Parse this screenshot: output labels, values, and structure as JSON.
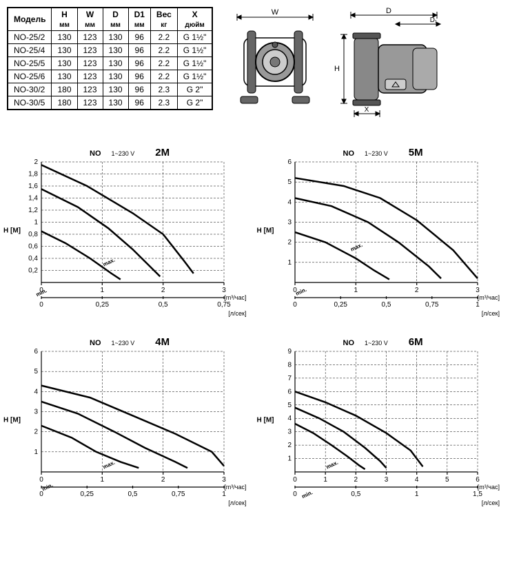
{
  "table": {
    "columns": [
      {
        "top": "Модель",
        "sub": ""
      },
      {
        "top": "H",
        "sub": "мм"
      },
      {
        "top": "W",
        "sub": "мм"
      },
      {
        "top": "D",
        "sub": "мм"
      },
      {
        "top": "D1",
        "sub": "мм"
      },
      {
        "top": "Вес",
        "sub": "кг"
      },
      {
        "top": "X",
        "sub": "дюйм"
      }
    ],
    "rows": [
      [
        "NO-25/2",
        "130",
        "123",
        "130",
        "96",
        "2.2",
        "G 1½\""
      ],
      [
        "NO-25/4",
        "130",
        "123",
        "130",
        "96",
        "2.2",
        "G 1½\""
      ],
      [
        "NO-25/5",
        "130",
        "123",
        "130",
        "96",
        "2.2",
        "G 1½\""
      ],
      [
        "NO-25/6",
        "130",
        "123",
        "130",
        "96",
        "2.2",
        "G 1½\""
      ],
      [
        "NO-30/2",
        "180",
        "123",
        "130",
        "96",
        "2.3",
        "G 2\""
      ],
      [
        "NO-30/5",
        "180",
        "123",
        "130",
        "96",
        "2.3",
        "G 2\""
      ]
    ],
    "border_color": "#000000",
    "bg_color": "#ffffff",
    "header_fontsize": 12,
    "cell_fontsize": 12
  },
  "diagram_labels": {
    "W": "W",
    "D": "D",
    "D1": "D₁",
    "H": "H",
    "X": "X"
  },
  "charts": [
    {
      "title_no": "NO",
      "voltage": "1~230 V",
      "size": "2M",
      "y_label": "H [M]",
      "x1_label": "[m³/час]",
      "x2_label": "[л/сек]",
      "ylim": [
        0,
        2
      ],
      "yticks": [
        0.2,
        0.4,
        0.6,
        0.8,
        1,
        1.2,
        1.4,
        1.6,
        1.8,
        2
      ],
      "x1lim": [
        0,
        3
      ],
      "x1ticks": [
        0,
        1,
        2,
        3
      ],
      "x2lim": [
        0,
        0.75
      ],
      "x2ticks": [
        0,
        0.25,
        0.5,
        0.75
      ],
      "curves": [
        {
          "label": "max.",
          "data": [
            [
              0,
              1.95
            ],
            [
              0.75,
              1.6
            ],
            [
              1.5,
              1.15
            ],
            [
              2.0,
              0.8
            ],
            [
              2.35,
              0.35
            ],
            [
              2.5,
              0.15
            ]
          ]
        },
        {
          "label": "",
          "data": [
            [
              0,
              1.55
            ],
            [
              0.6,
              1.25
            ],
            [
              1.1,
              0.9
            ],
            [
              1.5,
              0.55
            ],
            [
              1.85,
              0.2
            ],
            [
              1.95,
              0.1
            ]
          ]
        },
        {
          "label": "min.",
          "data": [
            [
              0,
              0.85
            ],
            [
              0.4,
              0.65
            ],
            [
              0.8,
              0.4
            ],
            [
              1.15,
              0.15
            ],
            [
              1.3,
              0.05
            ]
          ]
        }
      ],
      "line_color": "#000000",
      "grid_color": "#000000",
      "bg": "#ffffff",
      "line_width": 2.5
    },
    {
      "title_no": "NO",
      "voltage": "1~230 V",
      "size": "5M",
      "y_label": "H [M]",
      "x1_label": "[m³/час]",
      "x2_label": "[л/сек]",
      "ylim": [
        0,
        6
      ],
      "yticks": [
        1,
        2,
        3,
        4,
        5,
        6
      ],
      "x1lim": [
        0,
        3
      ],
      "x1ticks": [
        0,
        1,
        2,
        3
      ],
      "x2lim": [
        0,
        1.0
      ],
      "x2ticks": [
        0,
        0.25,
        0.5,
        0.75,
        1.0
      ],
      "curves": [
        {
          "label": "max.",
          "data": [
            [
              0,
              5.2
            ],
            [
              0.8,
              4.8
            ],
            [
              1.4,
              4.2
            ],
            [
              2.0,
              3.1
            ],
            [
              2.6,
              1.6
            ],
            [
              3.0,
              0.2
            ]
          ]
        },
        {
          "label": "",
          "data": [
            [
              0,
              4.2
            ],
            [
              0.6,
              3.8
            ],
            [
              1.2,
              3.0
            ],
            [
              1.7,
              2.0
            ],
            [
              2.2,
              0.8
            ],
            [
              2.4,
              0.2
            ]
          ]
        },
        {
          "label": "min.",
          "data": [
            [
              0,
              2.5
            ],
            [
              0.5,
              2.0
            ],
            [
              1.0,
              1.2
            ],
            [
              1.3,
              0.6
            ],
            [
              1.55,
              0.15
            ]
          ]
        }
      ],
      "line_color": "#000000",
      "grid_color": "#000000",
      "bg": "#ffffff",
      "line_width": 2.5
    },
    {
      "title_no": "NO",
      "voltage": "1~230 V",
      "size": "4M",
      "y_label": "H [M]",
      "x1_label": "[m³/час]",
      "x2_label": "[л/сек]",
      "ylim": [
        0,
        6
      ],
      "yticks": [
        1,
        2,
        3,
        4,
        5,
        6
      ],
      "x1lim": [
        0,
        3
      ],
      "x1ticks": [
        0,
        1,
        2,
        3
      ],
      "x2lim": [
        0,
        1.0
      ],
      "x2ticks": [
        0,
        0.25,
        0.5,
        0.75,
        1.0
      ],
      "curves": [
        {
          "label": "max.",
          "data": [
            [
              0,
              4.3
            ],
            [
              0.8,
              3.7
            ],
            [
              1.5,
              2.8
            ],
            [
              2.2,
              1.9
            ],
            [
              2.8,
              1.0
            ],
            [
              3.0,
              0.3
            ]
          ]
        },
        {
          "label": "",
          "data": [
            [
              0,
              3.5
            ],
            [
              0.6,
              2.9
            ],
            [
              1.2,
              2.0
            ],
            [
              1.7,
              1.2
            ],
            [
              2.2,
              0.5
            ],
            [
              2.4,
              0.2
            ]
          ]
        },
        {
          "label": "min.",
          "data": [
            [
              0,
              2.3
            ],
            [
              0.5,
              1.7
            ],
            [
              0.9,
              1.0
            ],
            [
              1.3,
              0.5
            ],
            [
              1.6,
              0.2
            ]
          ]
        }
      ],
      "line_color": "#000000",
      "grid_color": "#000000",
      "bg": "#ffffff",
      "line_width": 2.5
    },
    {
      "title_no": "NO",
      "voltage": "1~230 V",
      "size": "6M",
      "y_label": "H [M]",
      "x1_label": "[m³/час]",
      "x2_label": "[л/сек]",
      "ylim": [
        0,
        9
      ],
      "yticks": [
        1,
        2,
        3,
        4,
        5,
        6,
        7,
        8,
        9
      ],
      "x1lim": [
        0,
        6
      ],
      "x1ticks": [
        0,
        1,
        2,
        3,
        4,
        5,
        6
      ],
      "x2lim": [
        0,
        1.5
      ],
      "x2ticks": [
        0,
        0.5,
        1.0,
        1.5
      ],
      "curves": [
        {
          "label": "max.",
          "data": [
            [
              0,
              6.0
            ],
            [
              1.0,
              5.2
            ],
            [
              2.0,
              4.2
            ],
            [
              3.0,
              2.9
            ],
            [
              3.8,
              1.6
            ],
            [
              4.2,
              0.4
            ]
          ]
        },
        {
          "label": "",
          "data": [
            [
              0,
              4.8
            ],
            [
              0.8,
              4.0
            ],
            [
              1.6,
              3.0
            ],
            [
              2.3,
              1.8
            ],
            [
              2.8,
              0.8
            ],
            [
              3.0,
              0.3
            ]
          ]
        },
        {
          "label": "min.",
          "data": [
            [
              0,
              3.6
            ],
            [
              0.6,
              2.9
            ],
            [
              1.2,
              2.0
            ],
            [
              1.7,
              1.2
            ],
            [
              2.1,
              0.5
            ],
            [
              2.3,
              0.2
            ]
          ]
        }
      ],
      "line_color": "#000000",
      "grid_color": "#000000",
      "bg": "#ffffff",
      "line_width": 2.5
    }
  ]
}
